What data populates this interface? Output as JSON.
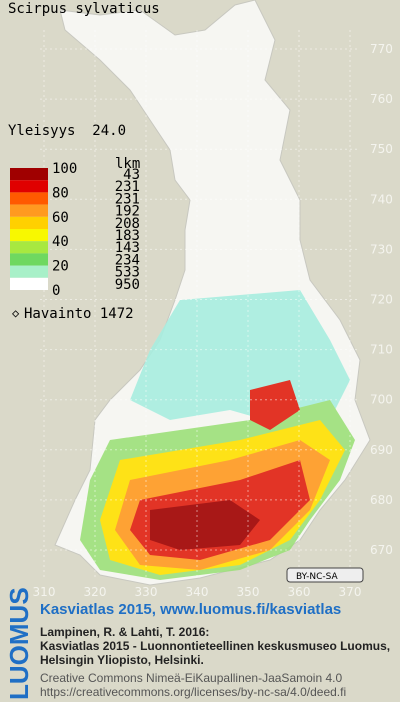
{
  "title": "Scirpus sylvaticus",
  "frequency": "Yleisyys  24.0",
  "legend": {
    "ticks": [
      100,
      80,
      60,
      40,
      20,
      0
    ],
    "count_header": "lkm",
    "counts": [
      43,
      231,
      231,
      192,
      208,
      183,
      143,
      234,
      533,
      950
    ],
    "observations": "Havainto 1472"
  },
  "grid": {
    "y_labels": [
      770,
      760,
      750,
      740,
      730,
      720,
      710,
      700,
      690,
      680,
      670
    ],
    "x_labels": [
      310,
      320,
      330,
      340,
      350,
      360,
      370
    ]
  },
  "license_badge": "BY-NC-SA",
  "footer": {
    "logo": "LUOMUS",
    "headline": "Kasviatlas 2015, www.luomus.fi/kasviatlas",
    "citation_1": "Lampinen, R. & Lahti, T. 2016:",
    "citation_2": "Kasviatlas 2015 - Luonnontieteellinen keskusmuseo Luomus,",
    "citation_3": "Helsingin Yliopisto, Helsinki.",
    "license_1": "Creative Commons Nimeä-EiKaupallinen-JaaSamoin 4.0",
    "license_2": "https://creativecommons.org/licenses/by-nc-sa/4.0/deed.fi"
  }
}
